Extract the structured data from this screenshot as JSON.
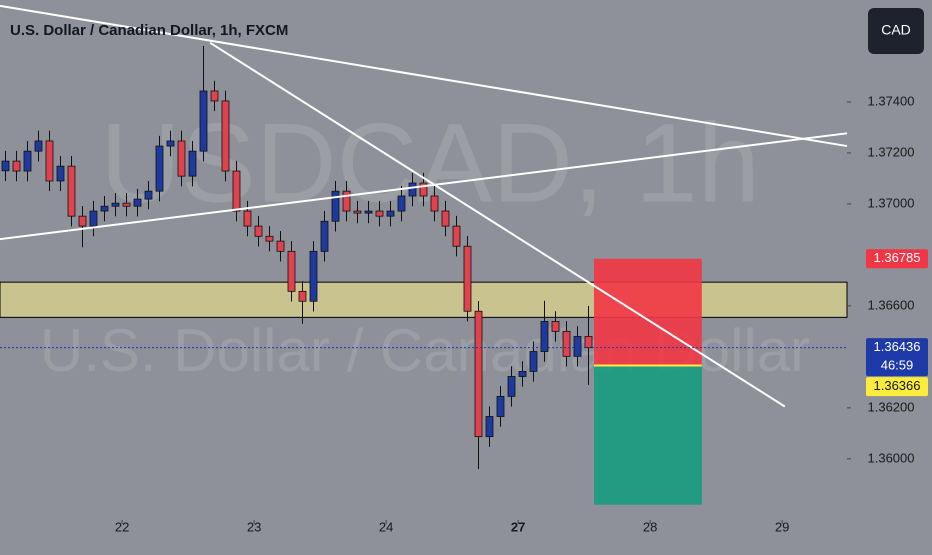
{
  "chart_data": {
    "type": "candlestick",
    "title": "U.S. Dollar / Canadian Dollar, 1h, FXCM",
    "watermark": "USDCAD, 1h",
    "watermark_subtitle": "U.S. Dollar / Canadian Dollar",
    "currency_button": "CAD",
    "up_color": "#1f3a9e",
    "down_color": "#e0424e",
    "background": "#8e9199",
    "x": [
      1,
      3,
      5,
      7,
      9,
      11,
      13,
      15,
      17,
      19,
      21,
      23,
      25,
      27,
      29,
      31,
      33,
      35,
      37,
      39,
      41,
      43,
      45,
      47,
      49,
      51,
      53,
      55,
      57,
      59,
      61,
      63,
      65,
      67,
      69,
      71,
      73,
      75,
      77,
      79,
      81,
      83,
      85,
      87,
      89,
      91,
      93,
      95,
      97,
      99,
      101,
      103,
      105,
      107
    ],
    "open": [
      1.3713,
      1.37168,
      1.37129,
      1.37207,
      1.37247,
      1.3709,
      1.37148,
      1.36952,
      1.36913,
      1.36972,
      1.36991,
      1.37003,
      1.36991,
      1.37019,
      1.3705,
      1.37227,
      1.37247,
      1.37109,
      1.37207,
      1.37443,
      1.37404,
      1.37129,
      1.36972,
      1.36913,
      1.36873,
      1.36854,
      1.36814,
      1.36657,
      1.36618,
      1.36814,
      1.36932,
      1.3705,
      1.36972,
      1.36964,
      1.36972,
      1.36952,
      1.36972,
      1.37031,
      1.37082,
      1.37031,
      1.36972,
      1.36913,
      1.36834,
      1.36579,
      1.36087,
      1.36166,
      1.36245,
      1.36323,
      1.36343,
      1.36421,
      1.36539,
      1.365,
      1.36402,
      1.3648
    ],
    "high": [
      1.37208,
      1.37208,
      1.37247,
      1.37287,
      1.37287,
      1.37188,
      1.37188,
      1.36992,
      1.37012,
      1.37031,
      1.37043,
      1.37043,
      1.37059,
      1.3709,
      1.37267,
      1.37287,
      1.37287,
      1.37247,
      1.3762,
      1.37483,
      1.37444,
      1.37169,
      1.37012,
      1.36953,
      1.36913,
      1.36894,
      1.36854,
      1.36697,
      1.36854,
      1.36972,
      1.3709,
      1.3709,
      1.37012,
      1.37012,
      1.37012,
      1.37012,
      1.37071,
      1.37122,
      1.37122,
      1.37071,
      1.37012,
      1.36953,
      1.36874,
      1.36619,
      1.36206,
      1.36285,
      1.36363,
      1.36383,
      1.36461,
      1.3662,
      1.36579,
      1.3654,
      1.3652,
      1.366
    ],
    "low": [
      1.3709,
      1.37089,
      1.37089,
      1.37167,
      1.3705,
      1.3705,
      1.36912,
      1.3683,
      1.36873,
      1.36932,
      1.36951,
      1.36951,
      1.36951,
      1.36979,
      1.3701,
      1.37187,
      1.37069,
      1.37069,
      1.37167,
      1.37364,
      1.37089,
      1.36932,
      1.36873,
      1.36833,
      1.36814,
      1.36774,
      1.36617,
      1.3653,
      1.36578,
      1.36774,
      1.36892,
      1.36932,
      1.36924,
      1.36924,
      1.36912,
      1.36912,
      1.36932,
      1.36991,
      1.36991,
      1.36932,
      1.36873,
      1.36794,
      1.36539,
      1.3596,
      1.36047,
      1.36126,
      1.36205,
      1.36283,
      1.36303,
      1.36381,
      1.3646,
      1.36362,
      1.36362,
      1.3629
    ],
    "close": [
      1.37168,
      1.37129,
      1.37207,
      1.37247,
      1.3709,
      1.37148,
      1.36952,
      1.36913,
      1.36972,
      1.36991,
      1.37003,
      1.36991,
      1.37019,
      1.3705,
      1.37227,
      1.37247,
      1.37109,
      1.37207,
      1.37443,
      1.37404,
      1.37129,
      1.36972,
      1.36913,
      1.36873,
      1.36854,
      1.36814,
      1.36657,
      1.36618,
      1.36814,
      1.36932,
      1.3705,
      1.36972,
      1.36964,
      1.36972,
      1.36952,
      1.36972,
      1.37031,
      1.37082,
      1.37031,
      1.36972,
      1.36913,
      1.36834,
      1.36579,
      1.36087,
      1.36166,
      1.36245,
      1.36323,
      1.36343,
      1.36421,
      1.36539,
      1.365,
      1.36402,
      1.3648,
      1.36436
    ],
    "xlim": [
      0,
      154
    ],
    "ylim": [
      1.3576,
      1.378
    ],
    "xticks": [
      {
        "value": 22.2,
        "label": "22"
      },
      {
        "value": 46.2,
        "label": "23"
      },
      {
        "value": 70.2,
        "label": "24"
      },
      {
        "value": 94.2,
        "label": "27"
      },
      {
        "value": 118.2,
        "label": "28"
      },
      {
        "value": 142.2,
        "label": "29"
      }
    ],
    "yticks": [
      {
        "value": 1.374,
        "label": "1.37400"
      },
      {
        "value": 1.372,
        "label": "1.37200"
      },
      {
        "value": 1.37,
        "label": "1.37000"
      },
      {
        "value": 1.366,
        "label": "1.36600"
      },
      {
        "value": 1.362,
        "label": "1.36200"
      },
      {
        "value": 1.36,
        "label": "1.36000"
      }
    ],
    "zone": {
      "bottom": 1.36555,
      "top": 1.36693,
      "color": "#c9c48f"
    },
    "trendlines": [
      {
        "x": [
          0,
          154
        ],
        "y": [
          1.37777,
          1.37227
        ]
      },
      {
        "x": [
          38.2,
          142.7
        ],
        "y": [
          1.37632,
          1.36205
        ]
      },
      {
        "x": [
          0,
          154
        ],
        "y": [
          1.36862,
          1.37277
        ]
      }
    ],
    "position": {
      "x": [
        108,
        127.6
      ],
      "stop": 1.36785,
      "entry": 1.36366,
      "target": 1.3582,
      "stop_color": "#f23645",
      "target_color": "#169c80"
    },
    "price_labels": [
      {
        "value": 1.36785,
        "label": "1.36785",
        "color": "#f23645",
        "text_color": "#ffffff"
      },
      {
        "value": 1.36436,
        "label": "1.36436",
        "color": "#1e3aa8",
        "text_color": "#ffffff",
        "countdown": "46:59"
      },
      {
        "value": 1.36366,
        "label": "1.36366",
        "color": "#ffeb3b",
        "text_color": "#131722"
      }
    ]
  }
}
